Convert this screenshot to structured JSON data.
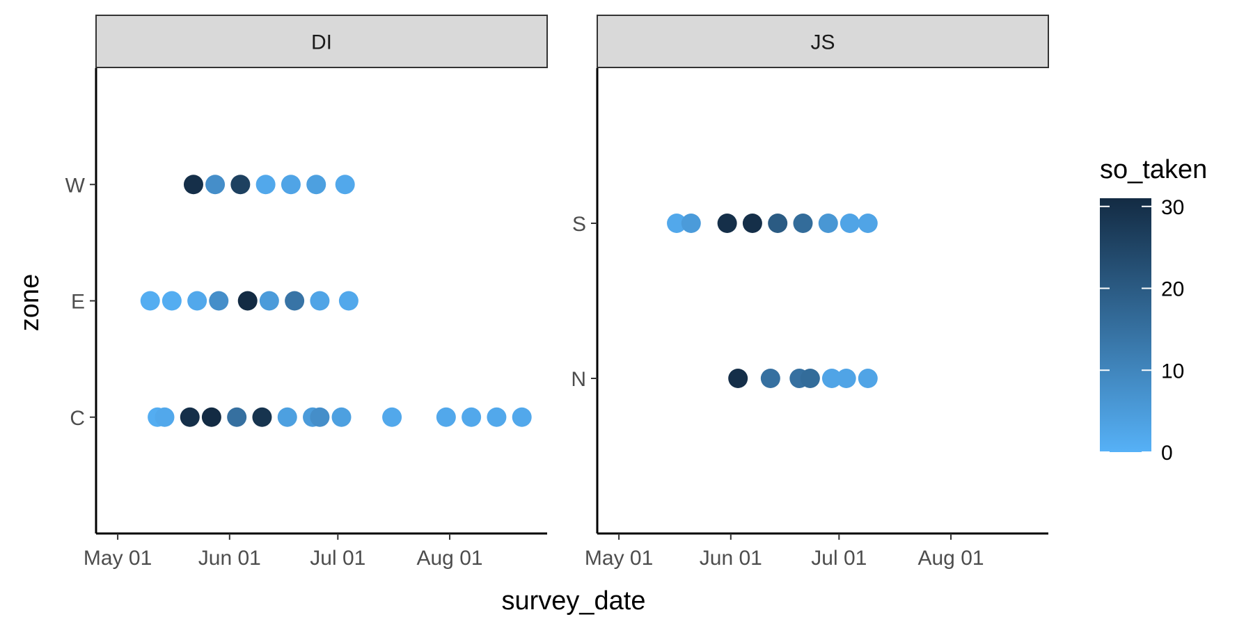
{
  "chart_data": {
    "type": "scatter",
    "xlabel": "survey_date",
    "ylabel": "zone",
    "x_ticks": [
      "May 01",
      "Jun 01",
      "Jul 01",
      "Aug 01"
    ],
    "x_tick_dates": [
      "2021-05-01",
      "2021-06-01",
      "2021-07-01",
      "2021-08-01"
    ],
    "xlim": [
      "2021-04-25",
      "2021-08-28"
    ],
    "grid": false,
    "legend": {
      "title": "so_taken",
      "type": "colorbar",
      "placement": "right",
      "ticks": [
        0,
        10,
        20,
        30
      ],
      "range": [
        0,
        31
      ],
      "low_color": "#56B1F7",
      "high_color": "#132B43"
    },
    "panels": [
      {
        "strip": "DI",
        "categories": [
          "C",
          "E",
          "W"
        ],
        "points": [
          {
            "zone": "W",
            "x": "2021-05-22",
            "so_taken": 30
          },
          {
            "zone": "W",
            "x": "2021-05-28",
            "so_taken": 8
          },
          {
            "zone": "W",
            "x": "2021-06-04",
            "so_taken": 26
          },
          {
            "zone": "W",
            "x": "2021-06-11",
            "so_taken": 2
          },
          {
            "zone": "W",
            "x": "2021-06-18",
            "so_taken": 3
          },
          {
            "zone": "W",
            "x": "2021-06-25",
            "so_taken": 4
          },
          {
            "zone": "W",
            "x": "2021-07-03",
            "so_taken": 2
          },
          {
            "zone": "E",
            "x": "2021-05-10",
            "so_taken": 1
          },
          {
            "zone": "E",
            "x": "2021-05-16",
            "so_taken": 1
          },
          {
            "zone": "E",
            "x": "2021-05-23",
            "so_taken": 2
          },
          {
            "zone": "E",
            "x": "2021-05-29",
            "so_taken": 8
          },
          {
            "zone": "E",
            "x": "2021-06-06",
            "so_taken": 31
          },
          {
            "zone": "E",
            "x": "2021-06-12",
            "so_taken": 5
          },
          {
            "zone": "E",
            "x": "2021-06-19",
            "so_taken": 14
          },
          {
            "zone": "E",
            "x": "2021-06-26",
            "so_taken": 3
          },
          {
            "zone": "E",
            "x": "2021-07-04",
            "so_taken": 2
          },
          {
            "zone": "C",
            "x": "2021-05-12",
            "so_taken": 1
          },
          {
            "zone": "C",
            "x": "2021-05-14",
            "so_taken": 2
          },
          {
            "zone": "C",
            "x": "2021-05-21",
            "so_taken": 30
          },
          {
            "zone": "C",
            "x": "2021-05-27",
            "so_taken": 31
          },
          {
            "zone": "C",
            "x": "2021-06-03",
            "so_taken": 15
          },
          {
            "zone": "C",
            "x": "2021-06-10",
            "so_taken": 29
          },
          {
            "zone": "C",
            "x": "2021-06-17",
            "so_taken": 4
          },
          {
            "zone": "C",
            "x": "2021-06-24",
            "so_taken": 5
          },
          {
            "zone": "C",
            "x": "2021-06-26",
            "so_taken": 8
          },
          {
            "zone": "C",
            "x": "2021-07-02",
            "so_taken": 4
          },
          {
            "zone": "C",
            "x": "2021-07-16",
            "so_taken": 2
          },
          {
            "zone": "C",
            "x": "2021-07-31",
            "so_taken": 2
          },
          {
            "zone": "C",
            "x": "2021-08-07",
            "so_taken": 2
          },
          {
            "zone": "C",
            "x": "2021-08-14",
            "so_taken": 2
          },
          {
            "zone": "C",
            "x": "2021-08-21",
            "so_taken": 2
          }
        ]
      },
      {
        "strip": "JS",
        "categories": [
          "N",
          "S"
        ],
        "points": [
          {
            "zone": "S",
            "x": "2021-05-17",
            "so_taken": 2
          },
          {
            "zone": "S",
            "x": "2021-05-21",
            "so_taken": 5
          },
          {
            "zone": "S",
            "x": "2021-05-31",
            "so_taken": 30
          },
          {
            "zone": "S",
            "x": "2021-06-07",
            "so_taken": 30
          },
          {
            "zone": "S",
            "x": "2021-06-14",
            "so_taken": 20
          },
          {
            "zone": "S",
            "x": "2021-06-21",
            "so_taken": 16
          },
          {
            "zone": "S",
            "x": "2021-06-28",
            "so_taken": 6
          },
          {
            "zone": "S",
            "x": "2021-07-04",
            "so_taken": 3
          },
          {
            "zone": "S",
            "x": "2021-07-09",
            "so_taken": 3
          },
          {
            "zone": "N",
            "x": "2021-06-03",
            "so_taken": 30
          },
          {
            "zone": "N",
            "x": "2021-06-12",
            "so_taken": 15
          },
          {
            "zone": "N",
            "x": "2021-06-20",
            "so_taken": 15
          },
          {
            "zone": "N",
            "x": "2021-06-23",
            "so_taken": 16
          },
          {
            "zone": "N",
            "x": "2021-06-29",
            "so_taken": 3
          },
          {
            "zone": "N",
            "x": "2021-07-03",
            "so_taken": 3
          },
          {
            "zone": "N",
            "x": "2021-07-09",
            "so_taken": 3
          }
        ]
      }
    ]
  }
}
